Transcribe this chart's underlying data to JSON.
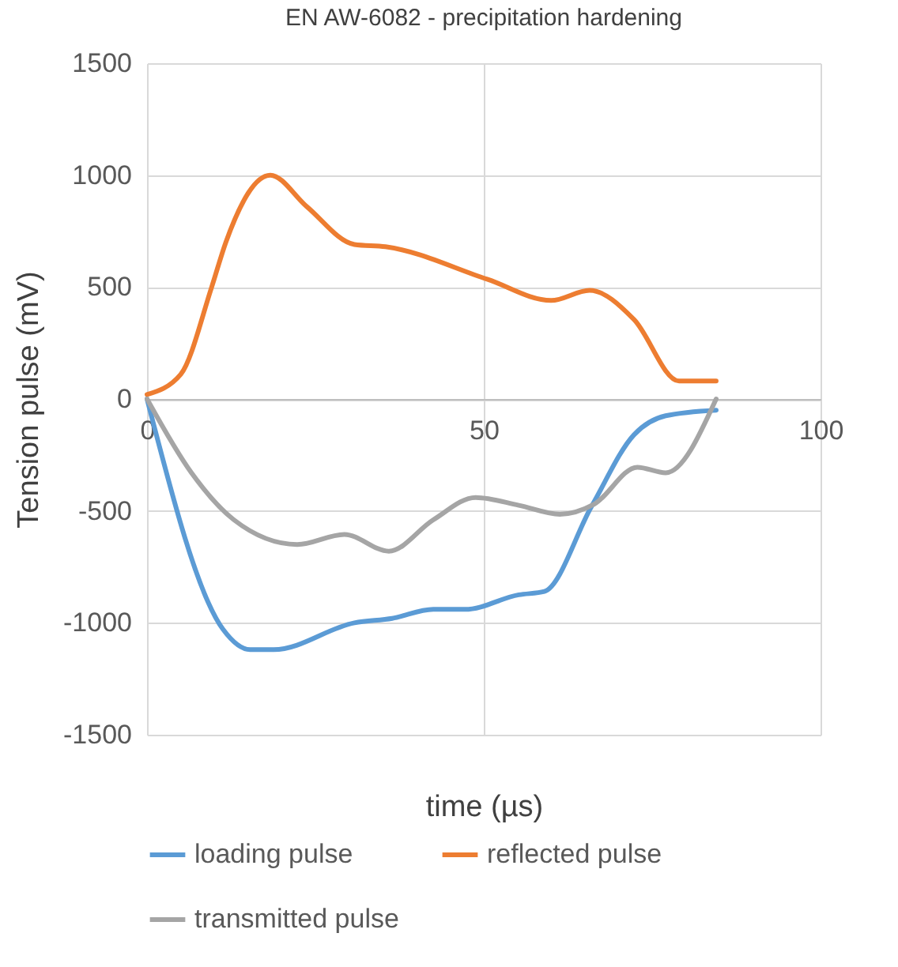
{
  "chart_data": {
    "type": "line",
    "title": "EN AW-6082 - precipitation hardening",
    "xlabel": "time (µs)",
    "ylabel": "Tension pulse (mV)",
    "xlim": [
      0,
      100
    ],
    "xticks": [
      0,
      50,
      100
    ],
    "ylim": [
      -1500,
      1500
    ],
    "yticks": [
      -1500,
      -1000,
      -500,
      0,
      500,
      1000,
      1500
    ],
    "grid": true,
    "legend": "bottom",
    "marker": "none",
    "line_style": "solid",
    "series": [
      {
        "name": "loading pulse",
        "color": "#5b9bd5",
        "x": [
          0,
          11.3,
          15.3,
          18.8,
          30.8,
          36.4,
          42.5,
          47.2,
          55.2,
          59,
          66,
          72.3,
          77,
          84.5
        ],
        "values": [
          0,
          -1030,
          -1120,
          -1120,
          -1000,
          -980,
          -940,
          -940,
          -875,
          -860,
          -480,
          -160,
          -75,
          -50
        ]
      },
      {
        "name": "reflected pulse",
        "color": "#ed7d31",
        "x": [
          0,
          5,
          9.6,
          11.7,
          18.3,
          23.7,
          30.8,
          35.4,
          50.5,
          60,
          65.7,
          72.3,
          79,
          84.5
        ],
        "values": [
          20,
          110,
          500,
          700,
          1000,
          860,
          690,
          680,
          535,
          440,
          485,
          355,
          80,
          80
        ]
      },
      {
        "name": "transmitted pulse",
        "color": "#a5a5a5",
        "x": [
          0,
          6.6,
          12.9,
          22.3,
          29.3,
          35.9,
          42.5,
          48.8,
          55.2,
          61.3,
          66.4,
          72.8,
          77,
          84.5
        ],
        "values": [
          0,
          -330,
          -540,
          -650,
          -605,
          -680,
          -540,
          -440,
          -475,
          -515,
          -470,
          -305,
          -330,
          0
        ]
      }
    ]
  }
}
